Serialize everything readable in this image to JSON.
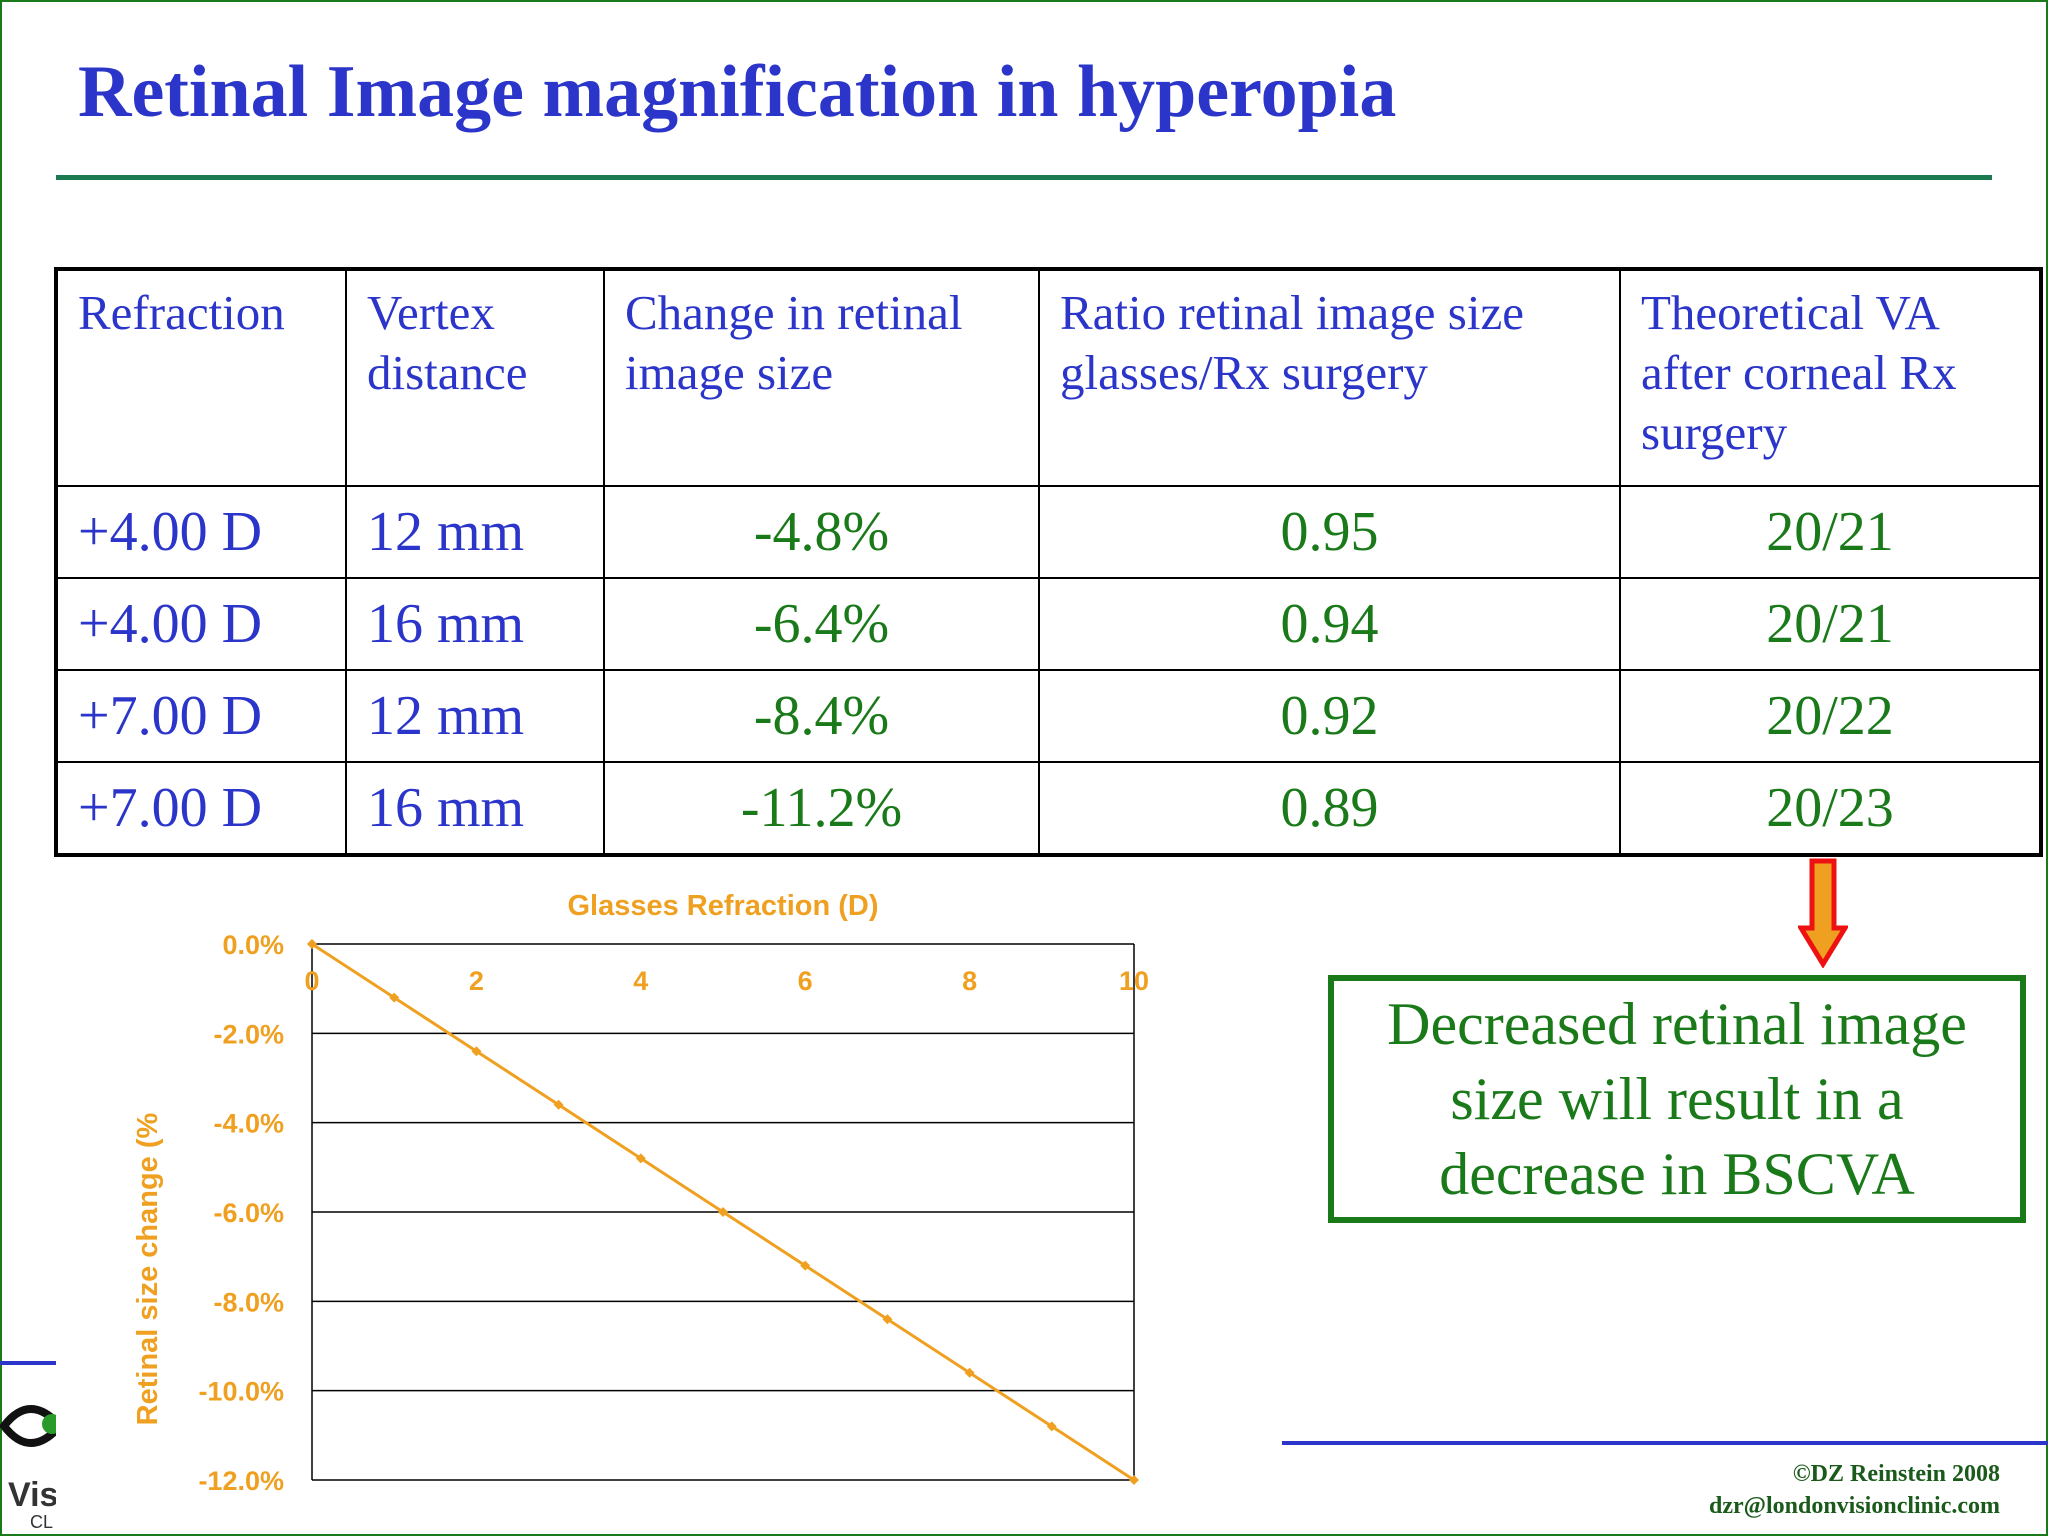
{
  "slide": {
    "title": "Retinal Image magnification in hyperopia"
  },
  "table": {
    "headers": [
      "Refraction",
      "Vertex distance",
      "Change in retinal image size",
      "Ratio retinal image size glasses/Rx surgery",
      "Theoretical VA after corneal Rx surgery"
    ],
    "rows": [
      [
        "+4.00 D",
        "12 mm",
        "-4.8%",
        "0.95",
        "20/21"
      ],
      [
        "+4.00 D",
        "16 mm",
        "-6.4%",
        "0.94",
        "20/21"
      ],
      [
        "+7.00 D",
        "12 mm",
        "-8.4%",
        "0.92",
        "20/22"
      ],
      [
        "+7.00 D",
        "16 mm",
        "-11.2%",
        "0.89",
        "20/23"
      ]
    ]
  },
  "callout": {
    "text": "Decreased retinal image size will result in a decrease in BSCVA"
  },
  "logo": {
    "text_partial": "Vis",
    "subtext_partial": "CL"
  },
  "footer": {
    "copyright": "©DZ Reinstein 2008",
    "email": "dzr@londonvisionclinic.com"
  },
  "colors": {
    "title": "#2b35c9",
    "table_values": "#1a7a1a",
    "chart": "#f0a020",
    "arrow_fill": "#f0a020",
    "arrow_stroke": "#ee1111"
  },
  "chart_data": {
    "type": "line",
    "title": "",
    "xlabel": "Glasses Refraction (D)",
    "ylabel": "Retinal size change (%",
    "xlim": [
      0,
      10
    ],
    "ylim": [
      -12,
      0
    ],
    "x_ticks": [
      0,
      2,
      4,
      6,
      8,
      10
    ],
    "y_ticks": [
      "0.0%",
      "-2.0%",
      "-4.0%",
      "-6.0%",
      "-8.0%",
      "-10.0%",
      "-12.0%"
    ],
    "x": [
      0,
      1,
      2,
      3,
      4,
      5,
      6,
      7,
      8,
      9,
      10
    ],
    "values": [
      0,
      -1.2,
      -2.4,
      -3.6,
      -4.8,
      -6.0,
      -7.2,
      -8.4,
      -9.6,
      -10.8,
      -12.0
    ],
    "grid": "horizontal",
    "color": "#f0a020"
  }
}
